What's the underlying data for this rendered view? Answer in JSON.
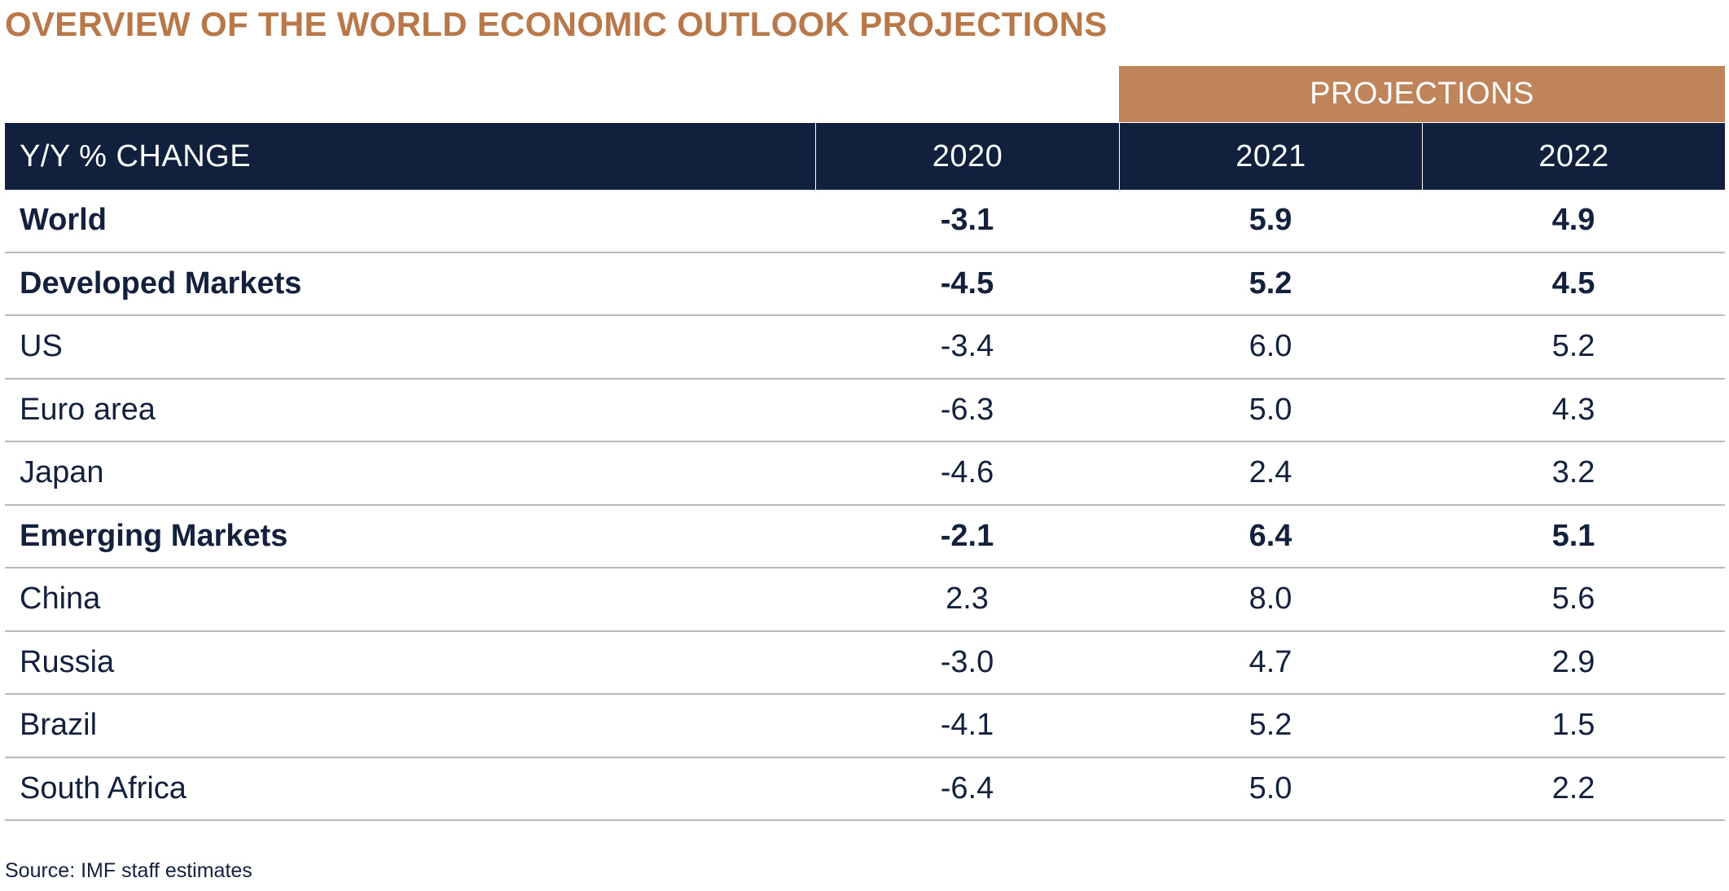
{
  "title": "OVERVIEW OF THE WORLD ECONOMIC OUTLOOK PROJECTIONS",
  "projections_label": "PROJECTIONS",
  "source": "Source: IMF staff estimates",
  "colors": {
    "title": "#b8784a",
    "projections_band": "#c0845a",
    "header_background": "#10203d",
    "text": "#13213d",
    "row_divider": "#b9b9b9"
  },
  "chart_data": {
    "type": "table",
    "title": "OVERVIEW OF THE WORLD ECONOMIC OUTLOOK PROJECTIONS",
    "column_group": "PROJECTIONS",
    "columns": [
      "Y/Y % CHANGE",
      "2020",
      "2021",
      "2022"
    ],
    "rows": [
      {
        "label": "World",
        "bold": true,
        "values": [
          "-3.1",
          "5.9",
          "4.9"
        ]
      },
      {
        "label": "Developed Markets",
        "bold": true,
        "values": [
          "-4.5",
          "5.2",
          "4.5"
        ]
      },
      {
        "label": "US",
        "bold": false,
        "values": [
          "-3.4",
          "6.0",
          "5.2"
        ]
      },
      {
        "label": "Euro area",
        "bold": false,
        "values": [
          "-6.3",
          "5.0",
          "4.3"
        ]
      },
      {
        "label": "Japan",
        "bold": false,
        "values": [
          "-4.6",
          "2.4",
          "3.2"
        ]
      },
      {
        "label": "Emerging Markets",
        "bold": true,
        "values": [
          "-2.1",
          "6.4",
          "5.1"
        ]
      },
      {
        "label": "China",
        "bold": false,
        "values": [
          "2.3",
          "8.0",
          "5.6"
        ]
      },
      {
        "label": "Russia",
        "bold": false,
        "values": [
          "-3.0",
          "4.7",
          "2.9"
        ]
      },
      {
        "label": "Brazil",
        "bold": false,
        "values": [
          "-4.1",
          "5.2",
          "1.5"
        ]
      },
      {
        "label": "South Africa",
        "bold": false,
        "values": [
          "-6.4",
          "5.0",
          "2.2"
        ]
      }
    ],
    "source": "Source: IMF staff estimates"
  }
}
